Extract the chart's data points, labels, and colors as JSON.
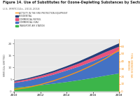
{
  "title": "Figure 14. Use of Substitutes for Ozone-Depleting Substances by Sector",
  "subtitle": "U.S. MMTCO2e, 2010-2018",
  "years": [
    2010,
    2011,
    2012,
    2013,
    2014,
    2015,
    2016,
    2017,
    2018
  ],
  "green_bottom": [
    1.5,
    2.0,
    2.6,
    3.2,
    3.9,
    4.7,
    5.6,
    6.6,
    7.5
  ],
  "blue_mid": [
    2.0,
    2.4,
    3.0,
    3.8,
    4.8,
    5.8,
    7.0,
    8.2,
    9.3
  ],
  "pink_top": [
    0.5,
    0.6,
    0.75,
    0.9,
    1.1,
    1.3,
    1.5,
    1.7,
    1.9
  ],
  "navy_top": [
    0.4,
    0.45,
    0.55,
    0.65,
    0.75,
    0.9,
    1.05,
    1.2,
    1.4
  ],
  "orange_line": [
    2.5,
    5.0,
    9.0,
    14.0,
    20.0,
    27.0,
    35.0,
    44.0,
    55.0
  ],
  "colors": {
    "green": "#3cb54a",
    "blue": "#4472c4",
    "pink": "#e8537a",
    "navy": "#243f7a",
    "orange": "#f7941d"
  },
  "legend_labels": [
    "ACTIVITY IN THE FIRE PROTECTION EQUIPMENT",
    "RESIDENTIAL",
    "COMMERCIAL REFRIG.",
    "COMMERCIAL HVAC",
    "TRANSPORT AIR STATION"
  ],
  "legend_colors_order": [
    "orange",
    "navy",
    "pink",
    "blue",
    "green"
  ],
  "ylim_left": [
    0,
    22
  ],
  "ylim_right": [
    0,
    70
  ],
  "yticks_left": [
    0,
    5,
    10,
    15,
    20
  ],
  "yticks_right": [
    0,
    10,
    20,
    30,
    40,
    50,
    60
  ],
  "xticks": [
    2010,
    2012,
    2014,
    2016,
    2018
  ],
  "left_ylabel": "MMTCO2e EMITTED",
  "right_ylabel": "TOTAL GREENHOUSE GAS\nEMISSIONS",
  "plot_bg": "#e8e8e8",
  "fig_bg": "#ffffff"
}
